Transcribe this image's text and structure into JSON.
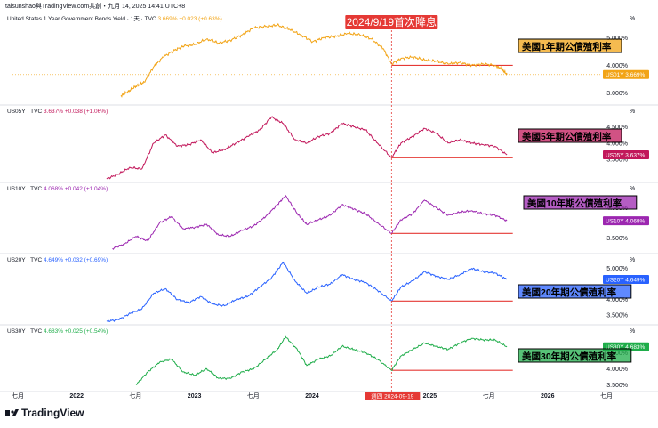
{
  "header": {
    "text": "taisunshao與TradingView.com共創・九月 14, 2025 14:41 UTC+8"
  },
  "annotation": {
    "text": "2024/9/19首次降息",
    "crosshair_date": "週四 2024-09-19"
  },
  "logo": {
    "text": "TradingView"
  },
  "colors": {
    "us01y": "#f2a416",
    "us05y": "#c2185b",
    "us10y": "#9c27b0",
    "us20y": "#2962ff",
    "us30y": "#1fad4a",
    "annotation": "#e53935",
    "support": "#e53935"
  },
  "chart_data": [
    {
      "type": "line",
      "symbol": "US01Y",
      "title_name": "United States 1 Year Government Bonds Yield · 1天 · TVC",
      "last_text": "3.669%",
      "change_text": "+0.023 (+0.63%)",
      "label": "美國1年期公債殖利率",
      "yticks": [
        "5.000%",
        "4.000%",
        "3.000%"
      ],
      "ytick_values": [
        5.0,
        4.0,
        3.0
      ],
      "ylim": [
        2.7,
        5.65
      ],
      "x": [
        2022.42,
        2022.48,
        2022.55,
        2022.62,
        2022.7,
        2022.78,
        2022.88,
        2022.96,
        2023.05,
        2023.15,
        2023.25,
        2023.35,
        2023.45,
        2023.55,
        2023.65,
        2023.75,
        2023.85,
        2023.95,
        2024.05,
        2024.15,
        2024.25,
        2024.35,
        2024.45,
        2024.55,
        2024.65,
        2024.72,
        2024.8,
        2024.9,
        2025.0,
        2025.1,
        2025.2,
        2025.3,
        2025.4,
        2025.5,
        2025.6,
        2025.66,
        2025.7
      ],
      "values": [
        2.9,
        3.05,
        3.25,
        3.4,
        3.95,
        4.3,
        4.55,
        4.7,
        4.75,
        4.95,
        4.8,
        4.9,
        5.1,
        5.35,
        5.4,
        5.45,
        5.3,
        5.1,
        4.85,
        5.0,
        5.05,
        5.15,
        5.1,
        4.95,
        4.6,
        4.05,
        4.25,
        4.3,
        4.2,
        4.15,
        4.05,
        4.1,
        4.0,
        4.05,
        4.0,
        3.85,
        3.669
      ],
      "support": 4.0
    },
    {
      "type": "line",
      "symbol": "US05Y",
      "title_name": "US05Y · TVC",
      "last_text": "3.637%",
      "change_text": "+0.038 (+1.06%)",
      "label": "美國5年期公債殖利率",
      "yticks": [
        "4.500%",
        "4.000%",
        "3.500%"
      ],
      "ytick_values": [
        4.5,
        4.0,
        3.5
      ],
      "ylim": [
        2.9,
        4.95
      ],
      "x": [
        2022.3,
        2022.4,
        2022.5,
        2022.6,
        2022.7,
        2022.8,
        2022.9,
        2023.0,
        2023.1,
        2023.2,
        2023.3,
        2023.4,
        2023.5,
        2023.6,
        2023.7,
        2023.8,
        2023.9,
        2024.0,
        2024.1,
        2024.2,
        2024.3,
        2024.4,
        2024.5,
        2024.6,
        2024.72,
        2024.8,
        2024.9,
        2025.0,
        2025.1,
        2025.2,
        2025.3,
        2025.4,
        2025.5,
        2025.6,
        2025.7
      ],
      "values": [
        2.9,
        3.05,
        3.25,
        3.2,
        4.0,
        4.25,
        3.9,
        3.95,
        4.1,
        3.7,
        3.8,
        4.0,
        4.2,
        4.4,
        4.8,
        4.6,
        4.1,
        4.0,
        4.2,
        4.3,
        4.6,
        4.5,
        4.4,
        4.0,
        3.55,
        4.0,
        4.2,
        4.45,
        4.3,
        4.0,
        4.1,
        4.0,
        3.95,
        3.9,
        3.637
      ],
      "support": 3.55
    },
    {
      "type": "line",
      "symbol": "US10Y",
      "title_name": "US10Y · TVC",
      "last_text": "4.068%",
      "change_text": "+0.042 (+1.04%)",
      "label": "美國10年期公債殖利率",
      "yticks": [
        "4.500%",
        "4.000%",
        "3.500%"
      ],
      "ytick_values": [
        4.5,
        4.0,
        3.5
      ],
      "ylim": [
        3.1,
        5.1
      ],
      "x": [
        2022.35,
        2022.45,
        2022.55,
        2022.65,
        2022.75,
        2022.85,
        2022.95,
        2023.05,
        2023.15,
        2023.25,
        2023.35,
        2023.45,
        2023.55,
        2023.65,
        2023.75,
        2023.82,
        2023.92,
        2024.0,
        2024.1,
        2024.2,
        2024.3,
        2024.4,
        2024.5,
        2024.6,
        2024.72,
        2024.8,
        2024.9,
        2025.0,
        2025.1,
        2025.2,
        2025.3,
        2025.4,
        2025.5,
        2025.6,
        2025.7
      ],
      "values": [
        3.15,
        3.3,
        3.55,
        3.4,
        4.0,
        4.2,
        3.8,
        3.85,
        3.95,
        3.6,
        3.55,
        3.75,
        3.9,
        4.2,
        4.6,
        4.9,
        4.3,
        3.95,
        4.1,
        4.25,
        4.6,
        4.45,
        4.3,
        4.0,
        3.65,
        4.1,
        4.3,
        4.75,
        4.5,
        4.25,
        4.35,
        4.4,
        4.3,
        4.25,
        4.068
      ],
      "support": 3.65
    },
    {
      "type": "line",
      "symbol": "US20Y",
      "title_name": "US20Y · TVC",
      "last_text": "4.649%",
      "change_text": "+0.032 (+0.69%)",
      "label": "美國20年期公債殖利率",
      "yticks": [
        "5.000%",
        "4.000%",
        "3.500%"
      ],
      "ytick_values": [
        5.0,
        4.0,
        3.5
      ],
      "ylim": [
        3.3,
        5.25
      ],
      "x": [
        2022.3,
        2022.4,
        2022.5,
        2022.6,
        2022.7,
        2022.8,
        2022.9,
        2023.0,
        2023.1,
        2023.2,
        2023.3,
        2023.4,
        2023.5,
        2023.6,
        2023.7,
        2023.8,
        2023.9,
        2024.0,
        2024.1,
        2024.2,
        2024.3,
        2024.4,
        2024.5,
        2024.6,
        2024.72,
        2024.8,
        2024.9,
        2025.0,
        2025.1,
        2025.2,
        2025.3,
        2025.4,
        2025.5,
        2025.6,
        2025.7
      ],
      "values": [
        3.3,
        3.35,
        3.55,
        3.7,
        4.2,
        4.35,
        4.0,
        3.9,
        4.1,
        3.85,
        3.8,
        4.0,
        4.1,
        4.4,
        4.7,
        5.2,
        4.6,
        4.2,
        4.4,
        4.5,
        4.8,
        4.65,
        4.55,
        4.3,
        3.95,
        4.4,
        4.6,
        4.9,
        4.75,
        4.65,
        4.8,
        5.0,
        4.9,
        4.85,
        4.649
      ],
      "support": 3.95
    },
    {
      "type": "line",
      "symbol": "US30Y",
      "title_name": "US30Y · TVC",
      "last_text": "4.683%",
      "change_text": "+0.025 (+0.54%)",
      "label": "美國30年期公債殖利率",
      "yticks": [
        "4.500%",
        "4.000%",
        "3.500%"
      ],
      "ytick_values": [
        4.5,
        4.0,
        3.5
      ],
      "ylim": [
        3.4,
        5.15
      ],
      "x": [
        2022.55,
        2022.65,
        2022.75,
        2022.85,
        2022.95,
        2023.05,
        2023.15,
        2023.25,
        2023.35,
        2023.45,
        2023.55,
        2023.65,
        2023.75,
        2023.82,
        2023.92,
        2024.0,
        2024.1,
        2024.2,
        2024.3,
        2024.4,
        2024.5,
        2024.6,
        2024.72,
        2024.8,
        2024.9,
        2025.0,
        2025.1,
        2025.2,
        2025.3,
        2025.4,
        2025.5,
        2025.6,
        2025.7
      ],
      "values": [
        3.5,
        3.9,
        4.2,
        4.3,
        3.9,
        3.8,
        4.0,
        3.7,
        3.7,
        3.9,
        4.0,
        4.3,
        4.6,
        5.0,
        4.6,
        4.1,
        4.3,
        4.4,
        4.7,
        4.6,
        4.5,
        4.3,
        3.95,
        4.4,
        4.6,
        4.8,
        4.7,
        4.6,
        4.8,
        4.95,
        4.9,
        4.9,
        4.683
      ],
      "support": 3.95
    }
  ],
  "xaxis": {
    "ticks": [
      {
        "label": "七月",
        "year": 2021.5,
        "bold": false
      },
      {
        "label": "2022",
        "year": 2022.0,
        "bold": true
      },
      {
        "label": "七月",
        "year": 2022.5,
        "bold": false
      },
      {
        "label": "2023",
        "year": 2023.0,
        "bold": true
      },
      {
        "label": "七月",
        "year": 2023.5,
        "bold": false
      },
      {
        "label": "2024",
        "year": 2024.0,
        "bold": true
      },
      {
        "label": "2025",
        "year": 2025.0,
        "bold": true
      },
      {
        "label": "七月",
        "year": 2025.5,
        "bold": false
      },
      {
        "label": "2026",
        "year": 2026.0,
        "bold": true
      },
      {
        "label": "七月",
        "year": 2026.5,
        "bold": false
      }
    ],
    "xlim": [
      2021.5,
      2026.5
    ],
    "event_x": 2024.72
  },
  "percent_unit": "%"
}
